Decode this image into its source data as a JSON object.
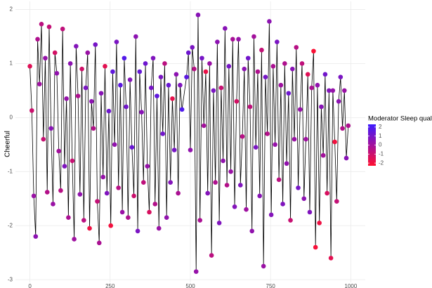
{
  "chart_data": {
    "type": "line-scatter",
    "ylabel": "Cheerful",
    "xlim": [
      -45,
      1045
    ],
    "ylim": [
      -3.05,
      2.15
    ],
    "xticks": [
      0,
      250,
      500,
      750,
      1000
    ],
    "yticks": [
      -3,
      -2,
      -1,
      0,
      1,
      2
    ],
    "grid": true,
    "line_color": "#000000",
    "x": [
      0,
      6,
      12,
      18,
      24,
      30,
      36,
      42,
      48,
      54,
      60,
      66,
      72,
      78,
      84,
      90,
      96,
      102,
      108,
      114,
      120,
      126,
      132,
      138,
      144,
      150,
      156,
      162,
      168,
      174,
      180,
      186,
      192,
      198,
      204,
      210,
      216,
      222,
      228,
      234,
      240,
      246,
      252,
      258,
      264,
      270,
      276,
      282,
      288,
      294,
      300,
      306,
      312,
      318,
      324,
      330,
      336,
      342,
      348,
      354,
      360,
      366,
      372,
      378,
      384,
      390,
      396,
      402,
      408,
      414,
      420,
      426,
      432,
      438,
      444,
      450,
      456,
      462,
      468,
      474,
      488,
      494,
      500,
      506,
      512,
      518,
      524,
      530,
      536,
      542,
      548,
      554,
      560,
      566,
      572,
      578,
      584,
      590,
      596,
      602,
      608,
      614,
      620,
      626,
      632,
      638,
      644,
      650,
      656,
      662,
      668,
      674,
      680,
      686,
      692,
      698,
      704,
      710,
      716,
      722,
      728,
      734,
      740,
      746,
      752,
      758,
      764,
      770,
      776,
      782,
      788,
      794,
      800,
      806,
      812,
      818,
      824,
      830,
      836,
      842,
      848,
      854,
      860,
      866,
      872,
      878,
      884,
      890,
      896,
      902,
      908,
      914,
      920,
      926,
      932,
      938,
      944,
      950,
      956,
      962,
      968,
      974,
      980,
      986,
      992
    ],
    "values": [
      0.95,
      0.13,
      -1.45,
      -2.2,
      1.45,
      0.62,
      1.73,
      -0.4,
      1.1,
      -1.38,
      1.68,
      -0.2,
      -1.6,
      1.2,
      0.82,
      -0.62,
      -1.35,
      1.64,
      -0.9,
      0.35,
      -1.85,
      1.0,
      -0.8,
      -2.25,
      1.32,
      0.4,
      -1.42,
      0.9,
      -1.9,
      0.55,
      1.2,
      -2.05,
      0.3,
      -0.2,
      1.35,
      -1.55,
      -2.32,
      0.45,
      -1.1,
      0.95,
      -1.4,
      0.12,
      -2.0,
      0.85,
      -0.5,
      1.4,
      -1.3,
      0.6,
      -1.75,
      1.1,
      0.2,
      -1.85,
      0.7,
      -0.55,
      -1.45,
      1.5,
      -2.1,
      0.85,
      0.1,
      -1.2,
      1.0,
      -0.9,
      -1.75,
      0.55,
      1.1,
      -1.6,
      0.4,
      -2.05,
      0.75,
      -0.3,
      1.0,
      -1.85,
      0.6,
      -1.2,
      0.35,
      -0.6,
      0.8,
      -1.4,
      0.6,
      0.15,
      0.75,
      1.2,
      -0.6,
      1.3,
      0.9,
      -2.85,
      1.9,
      -1.9,
      1.1,
      -0.15,
      0.85,
      -1.4,
      1.0,
      -2.55,
      0.5,
      -1.2,
      1.4,
      -1.95,
      0.55,
      -0.8,
      1.65,
      -1.25,
      0.95,
      -1.0,
      1.45,
      -1.65,
      0.3,
      1.45,
      -1.25,
      -0.35,
      0.9,
      -1.7,
      1.1,
      0.2,
      -2.1,
      1.5,
      -0.55,
      0.85,
      -1.45,
      1.25,
      -2.75,
      0.75,
      -0.3,
      1.78,
      -1.8,
      0.95,
      -0.5,
      1.4,
      -1.15,
      0.6,
      -1.6,
      1.0,
      -0.85,
      0.45,
      -1.9,
      0.9,
      -0.4,
      1.3,
      -1.3,
      0.15,
      1.0,
      -1.5,
      -0.4,
      0.8,
      -1.75,
      0.55,
      1.23,
      -2.4,
      0.6,
      -1.95,
      0.2,
      -0.7,
      0.8,
      -1.4,
      0.5,
      -2.6,
      0.5,
      -0.45,
      -1.55,
      0.3,
      0.75,
      -0.2,
      0.5,
      -0.75,
      -0.15
    ],
    "moderator": [
      -1.5,
      -1.0,
      0.2,
      0.5,
      -0.3,
      0.1,
      -0.6,
      -0.9,
      0.3,
      -0.4,
      -0.8,
      0.6,
      0.2,
      -1.2,
      0.4,
      0.0,
      -0.5,
      -0.7,
      0.8,
      0.3,
      -0.2,
      0.5,
      -0.9,
      0.1,
      0.7,
      -0.3,
      0.4,
      -1.1,
      -0.6,
      0.9,
      0.2,
      -1.9,
      0.5,
      -0.4,
      1.0,
      -0.8,
      -0.2,
      0.6,
      0.3,
      -1.6,
      0.8,
      1.2,
      -2.0,
      1.5,
      0.4,
      0.9,
      -0.5,
      1.6,
      0.2,
      1.8,
      1.1,
      -0.3,
      0.7,
      1.3,
      -1.0,
      0.5,
      0.9,
      1.4,
      0.6,
      -0.7,
      1.2,
      0.3,
      -1.3,
      1.0,
      0.8,
      -0.4,
      1.5,
      0.2,
      0.9,
      1.1,
      -0.6,
      0.4,
      1.3,
      0.7,
      -1.7,
      1.0,
      0.5,
      -0.2,
      0.8,
      1.9,
      1.6,
      1.2,
      0.4,
      0.9,
      -0.5,
      0.3,
      0.6,
      -0.2,
      1.0,
      0.0,
      -1.8,
      0.7,
      0.2,
      -0.6,
      0.9,
      -0.3,
      0.5,
      0.8,
      -0.9,
      0.4,
      0.6,
      -0.4,
      1.0,
      0.2,
      -0.1,
      0.7,
      -1.2,
      0.3,
      0.8,
      -0.5,
      0.5,
      0.1,
      1.1,
      -0.7,
      0.4,
      0.0,
      0.9,
      -0.3,
      0.6,
      -0.8,
      0.2,
      1.0,
      -0.4,
      0.5,
      0.7,
      -0.2,
      0.3,
      0.9,
      -0.6,
      0.1,
      0.8,
      -0.3,
      0.4,
      1.2,
      -0.9,
      0.6,
      0.2,
      -0.5,
      1.0,
      0.3,
      -0.7,
      0.5,
      0.1,
      -1.5,
      0.8,
      -0.2,
      -2.2,
      -2.1,
      0.4,
      -1.9,
      0.6,
      0.0,
      1.1,
      -1.3,
      0.7,
      -1.6,
      0.3,
      -2.0,
      -0.8,
      0.5,
      0.9,
      -0.4,
      0.2,
      0.6,
      -0.3
    ],
    "color_legend": {
      "title": "Moderator Sleep quality",
      "limits": [
        -2.3,
        2.3
      ],
      "ticks": [
        2,
        1,
        0,
        -1,
        -2
      ],
      "colors": [
        "#ff1030",
        "#a3109c",
        "#3d1cff"
      ]
    }
  }
}
